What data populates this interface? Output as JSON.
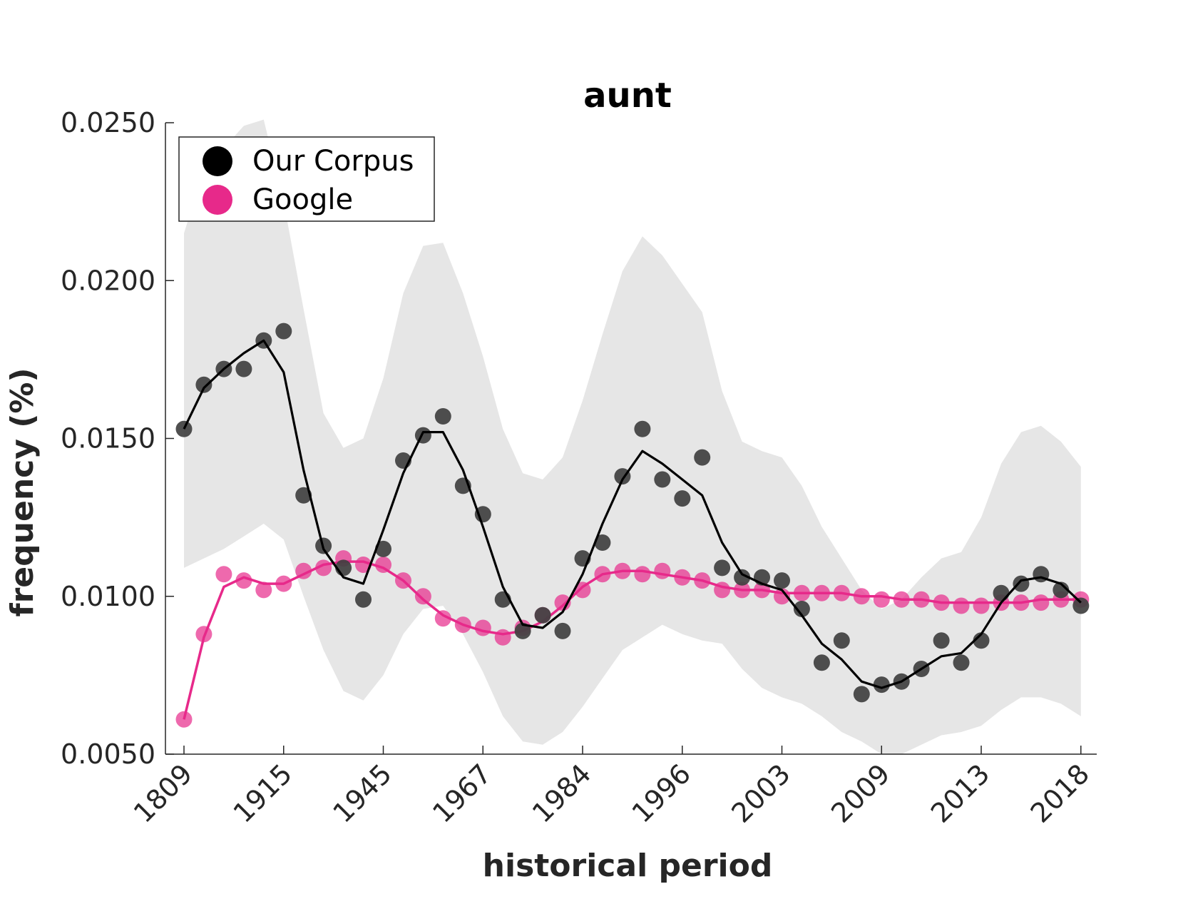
{
  "chart_data": {
    "type": "line",
    "title": "aunt",
    "xlabel": "historical period",
    "ylabel": "frequency (%)",
    "ylim": [
      0.005,
      0.025
    ],
    "y_ticks": [
      "0.0050",
      "0.0100",
      "0.0150",
      "0.0200",
      "0.0250"
    ],
    "x_tick_labels": [
      "1809",
      "1915",
      "1945",
      "1967",
      "1984",
      "1996",
      "2003",
      "2009",
      "2013",
      "2018"
    ],
    "x_tick_positions": [
      0,
      5,
      10,
      15,
      20,
      25,
      30,
      35,
      40,
      45
    ],
    "x_index": [
      0,
      1,
      2,
      3,
      4,
      5,
      6,
      7,
      8,
      9,
      10,
      11,
      12,
      13,
      14,
      15,
      16,
      17,
      18,
      19,
      20,
      21,
      22,
      23,
      24,
      25,
      26,
      27,
      28,
      29,
      30,
      31,
      32,
      33,
      34,
      35,
      36,
      37,
      38,
      39,
      40,
      41,
      42,
      43,
      44,
      45
    ],
    "colors": {
      "corpus": "#404040",
      "corpus_line": "#000000",
      "google": "#e7298a",
      "band": "#e6e6e6"
    },
    "legend": [
      {
        "label": "Our Corpus",
        "color": "#000000"
      },
      {
        "label": "Google",
        "color": "#e7298a"
      }
    ],
    "series": [
      {
        "name": "Our Corpus",
        "points": [
          0.0153,
          0.0167,
          0.0172,
          0.0172,
          0.0181,
          0.0184,
          0.0132,
          0.0116,
          0.0109,
          0.0099,
          0.0115,
          0.0143,
          0.0151,
          0.0157,
          0.0135,
          0.0126,
          0.0099,
          0.0089,
          0.0094,
          0.0089,
          0.0112,
          0.0117,
          0.0138,
          0.0153,
          0.0137,
          0.0131,
          0.0144,
          0.0109,
          0.0106,
          0.0106,
          0.0105,
          0.0096,
          0.0079,
          0.0086,
          0.0069,
          0.0072,
          0.0073,
          0.0077,
          0.0086,
          0.0079,
          0.0086,
          0.0101,
          0.0104,
          0.0107,
          0.0102,
          0.0097
        ],
        "line": [
          0.0153,
          0.0166,
          0.0172,
          0.0177,
          0.0181,
          0.0171,
          0.014,
          0.0115,
          0.0106,
          0.0104,
          0.0121,
          0.0139,
          0.0152,
          0.0152,
          0.014,
          0.0122,
          0.0103,
          0.0091,
          0.009,
          0.0095,
          0.0107,
          0.0123,
          0.0137,
          0.0146,
          0.0142,
          0.0137,
          0.0132,
          0.0117,
          0.0107,
          0.0104,
          0.0102,
          0.0094,
          0.0085,
          0.008,
          0.0073,
          0.0071,
          0.0073,
          0.0077,
          0.0081,
          0.0082,
          0.0088,
          0.0098,
          0.0105,
          0.0106,
          0.0104,
          0.0098
        ],
        "band_upper": [
          0.0215,
          0.0235,
          0.0242,
          0.0249,
          0.0251,
          0.0225,
          0.0191,
          0.0158,
          0.0147,
          0.015,
          0.0169,
          0.0196,
          0.0211,
          0.0212,
          0.0196,
          0.0176,
          0.0153,
          0.0139,
          0.0137,
          0.0144,
          0.0162,
          0.0183,
          0.0203,
          0.0214,
          0.0208,
          0.0199,
          0.019,
          0.0165,
          0.0149,
          0.0146,
          0.0144,
          0.0135,
          0.0122,
          0.0112,
          0.0102,
          0.0096,
          0.0099,
          0.0106,
          0.0112,
          0.0114,
          0.0125,
          0.0142,
          0.0152,
          0.0154,
          0.0149,
          0.0141
        ],
        "band_lower": [
          0.0109,
          0.0112,
          0.0115,
          0.0119,
          0.0123,
          0.0118,
          0.01,
          0.0083,
          0.007,
          0.0067,
          0.0075,
          0.0088,
          0.0096,
          0.0097,
          0.0088,
          0.0076,
          0.0062,
          0.0054,
          0.0053,
          0.0057,
          0.0065,
          0.0074,
          0.0083,
          0.0087,
          0.0091,
          0.0088,
          0.0086,
          0.0085,
          0.0077,
          0.0071,
          0.0068,
          0.0066,
          0.0062,
          0.0057,
          0.0054,
          0.005,
          0.005,
          0.0053,
          0.0056,
          0.0057,
          0.0059,
          0.0064,
          0.0068,
          0.0068,
          0.0066,
          0.0062
        ]
      },
      {
        "name": "Google",
        "points": [
          0.0061,
          0.0088,
          0.0107,
          0.0105,
          0.0102,
          0.0104,
          0.0108,
          0.0109,
          0.0112,
          0.011,
          0.011,
          0.0105,
          0.01,
          0.0093,
          0.0091,
          0.009,
          0.0087,
          0.009,
          0.0094,
          0.0098,
          0.0102,
          0.0107,
          0.0108,
          0.0107,
          0.0108,
          0.0106,
          0.0105,
          0.0102,
          0.0102,
          0.0102,
          0.01,
          0.0101,
          0.0101,
          0.0101,
          0.01,
          0.0099,
          0.0099,
          0.0099,
          0.0098,
          0.0097,
          0.0097,
          0.0098,
          0.0098,
          0.0098,
          0.0099,
          0.0099
        ],
        "line": [
          0.0061,
          0.0087,
          0.0103,
          0.0106,
          0.0104,
          0.0104,
          0.0107,
          0.011,
          0.0111,
          0.0111,
          0.0109,
          0.0105,
          0.0099,
          0.0094,
          0.0091,
          0.0089,
          0.0088,
          0.0089,
          0.0092,
          0.0097,
          0.0103,
          0.0107,
          0.0108,
          0.0108,
          0.0107,
          0.0106,
          0.0105,
          0.0103,
          0.0102,
          0.0102,
          0.0101,
          0.0101,
          0.0101,
          0.0101,
          0.01,
          0.01,
          0.0099,
          0.0099,
          0.0098,
          0.0098,
          0.0098,
          0.0098,
          0.0098,
          0.0099,
          0.0099,
          0.0099
        ]
      }
    ]
  }
}
